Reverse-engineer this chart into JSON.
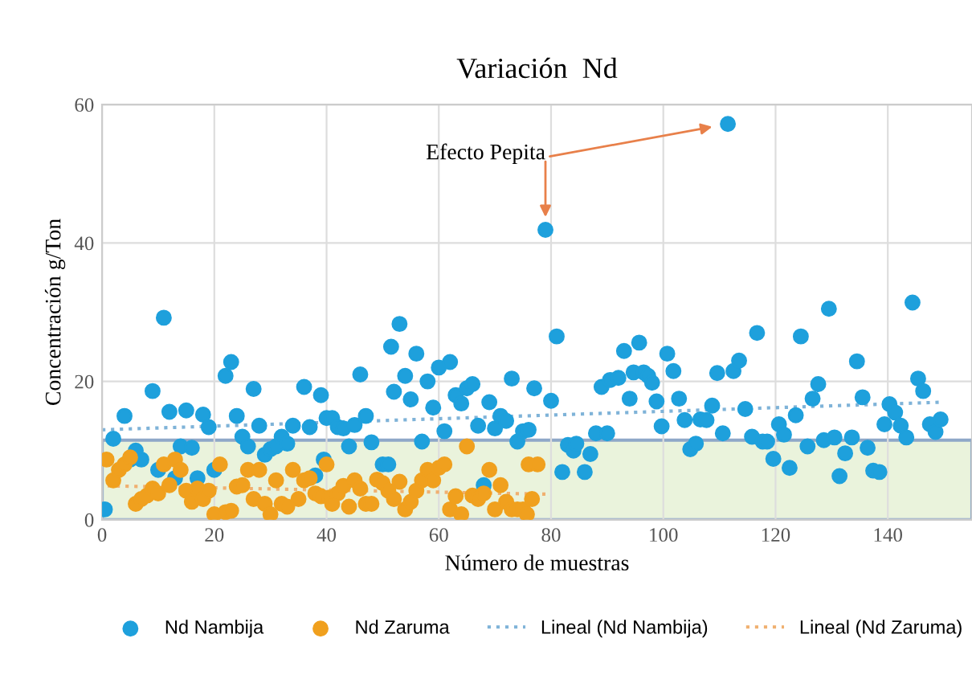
{
  "chart_data": {
    "type": "scatter",
    "title": "Variación  Nd",
    "xlabel": "Número de muestras",
    "ylabel": "Concentración g/Ton",
    "xlim": [
      0,
      155
    ],
    "ylim": [
      0,
      60
    ],
    "xticks": [
      0,
      20,
      40,
      60,
      80,
      100,
      120,
      140
    ],
    "yticks": [
      0,
      20,
      40,
      60
    ],
    "grid": true,
    "legend": "bottom",
    "marker": "circle",
    "series": [
      {
        "name": "Nd Nambija",
        "color": "#1ea0dc",
        "x": [
          0.5,
          2,
          4,
          5,
          6,
          7,
          9,
          10,
          11,
          12,
          13,
          14,
          15,
          16,
          17,
          18,
          19,
          20,
          22,
          23,
          24,
          25,
          26,
          27,
          28,
          29,
          30,
          31,
          32,
          33,
          34,
          36,
          37,
          38,
          39,
          39.5,
          40,
          41,
          42,
          43,
          44,
          45,
          46,
          47,
          48,
          50,
          51,
          51.5,
          52,
          53,
          54,
          55,
          56,
          57,
          58,
          59,
          60,
          61,
          62,
          63,
          64,
          65,
          66,
          67,
          68,
          69,
          70,
          71,
          72,
          73,
          74,
          75,
          76,
          77,
          79,
          80,
          81,
          82,
          83,
          84,
          84.5,
          86,
          87,
          88,
          89,
          90,
          90.5,
          92,
          93,
          94,
          94.7,
          95.7,
          96.5,
          97.3,
          98,
          98.8,
          99.7,
          100.7,
          101.8,
          102.8,
          103.8,
          104.8,
          105.8,
          106.6,
          107.7,
          108.7,
          109.6,
          110.6,
          111.5,
          112.5,
          113.5,
          114.6,
          115.8,
          116.7,
          117.7,
          118.5,
          119.6,
          120.6,
          121.5,
          122.5,
          123.6,
          124.5,
          125.7,
          126.6,
          127.6,
          128.6,
          129.5,
          130.5,
          131.4,
          132.4,
          133.6,
          134.5,
          135.5,
          136.4,
          137.4,
          138.5,
          139.4,
          140.3,
          141.3,
          142.3,
          143.3,
          144.4,
          145.4,
          146.3,
          147.5,
          148.5,
          149.4
        ],
        "values": [
          1.5,
          11.7,
          15,
          8.7,
          10,
          8.7,
          18.6,
          7.2,
          29.2,
          15.6,
          6,
          10.6,
          15.8,
          10.4,
          6,
          15.2,
          13.4,
          7.2,
          20.8,
          22.8,
          15,
          12,
          10.6,
          18.9,
          13.6,
          9.4,
          10.2,
          10.6,
          12,
          11,
          13.6,
          19.2,
          13.4,
          6.4,
          18,
          8.7,
          14.7,
          14.7,
          13.4,
          13.2,
          10.6,
          13.7,
          21,
          15,
          11.2,
          8,
          8,
          25,
          18.5,
          28.3,
          20.8,
          17.4,
          24,
          11.3,
          20,
          16.2,
          22,
          12.8,
          22.8,
          18,
          16.8,
          19,
          19.6,
          13.6,
          5,
          17,
          13.2,
          15,
          14.3,
          20.4,
          11.3,
          12.8,
          13,
          19,
          41.9,
          17.2,
          26.5,
          6.9,
          10.8,
          10,
          11,
          6.9,
          9.5,
          12.5,
          19.2,
          12.5,
          20.2,
          20.5,
          24.4,
          17.5,
          21.3,
          25.6,
          21.3,
          20.8,
          19.8,
          17.1,
          13.5,
          24,
          21.5,
          17.5,
          14.4,
          10.2,
          11,
          14.5,
          14.4,
          16.5,
          21.2,
          12.5,
          57.2,
          21.5,
          23,
          16,
          12,
          27,
          11.3,
          11.3,
          8.8,
          13.8,
          12.3,
          7.5,
          15.1,
          26.5,
          10.6,
          17.5,
          19.6,
          11.5,
          30.5,
          11.9,
          6.3,
          9.6,
          11.9,
          22.9,
          17.7,
          10.4,
          7.1,
          6.9,
          13.8,
          16.7,
          15.5,
          13.6,
          11.9,
          31.4,
          20.4,
          18.6,
          13.8,
          12.7,
          14.5
        ]
      },
      {
        "name": "Nd Zaruma",
        "color": "#f0a01e",
        "x": [
          0.8,
          2,
          3,
          4,
          5,
          6,
          7,
          8,
          9,
          10,
          11,
          12,
          13,
          14,
          15,
          16,
          17,
          18,
          19,
          20,
          21,
          22,
          23,
          24,
          25,
          26,
          27,
          28,
          29,
          30,
          31,
          32,
          33,
          34,
          35,
          36,
          37,
          38,
          39,
          40,
          40.5,
          41,
          42,
          43,
          44,
          45,
          46,
          47,
          48,
          49,
          50,
          51,
          52,
          53,
          54,
          55,
          56,
          57,
          58,
          59,
          60,
          61,
          62,
          63,
          64,
          65,
          66,
          67,
          68,
          69,
          70,
          71,
          72,
          73,
          74,
          75,
          75.7,
          76,
          76.6,
          77.6
        ],
        "values": [
          8.7,
          5.7,
          7.2,
          8,
          9,
          2.3,
          3,
          3.5,
          4.5,
          3.8,
          8,
          5,
          8.7,
          7.2,
          4.2,
          2.6,
          4.5,
          3,
          4.2,
          0.8,
          8,
          1.1,
          1.3,
          4.8,
          5,
          7.2,
          3,
          7.2,
          2.3,
          0.8,
          5.7,
          2.3,
          1.9,
          7.2,
          3,
          5.7,
          6,
          3.8,
          3.4,
          8,
          3.2,
          2.3,
          3.8,
          4.9,
          1.9,
          5.7,
          4.5,
          2.3,
          2.3,
          5.8,
          5.3,
          4.2,
          3,
          5.5,
          1.5,
          2.6,
          4.2,
          5.7,
          7.2,
          5.7,
          7.5,
          8,
          1.5,
          3.4,
          0.8,
          10.6,
          3.5,
          3,
          3.8,
          7.2,
          1.5,
          5,
          2.6,
          1.5,
          1.5,
          1.5,
          0.8,
          8,
          3,
          8
        ]
      },
      {
        "name": "Lineal (Nd Nambija)",
        "type": "line",
        "color": "#7fb3d8",
        "line_style": "dotted",
        "marker": "none",
        "x": [
          0,
          150
        ],
        "values": [
          13,
          17
        ]
      },
      {
        "name": "Lineal (Nd Zaruma)",
        "type": "line",
        "color": "#f0b070",
        "line_style": "dotted",
        "marker": "none",
        "x": [
          1,
          79
        ],
        "values": [
          4.9,
          3.7
        ]
      }
    ],
    "bands": [
      {
        "axis": "y",
        "from": 0,
        "to": 11.5,
        "color": "#eaf3dc"
      }
    ],
    "annotations": [
      {
        "text": "Efecto Pepita",
        "x": 79,
        "y": 41.9
      }
    ]
  }
}
